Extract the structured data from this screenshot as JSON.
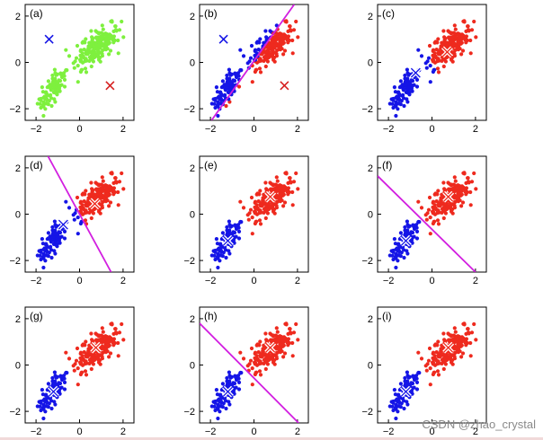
{
  "colors": {
    "cluster1": "#1515e6",
    "cluster2": "#ee2a1e",
    "unassigned": "#7ef03e",
    "boundary": "#d21fe0",
    "centroid_inactive_1": "#1515e6",
    "centroid_inactive_2": "#d62020",
    "centroid_active": "#ffffff"
  },
  "watermark": "CSDN @zhao_crystal",
  "chart_data": {
    "type": "scatter",
    "xlim": [
      -2.5,
      2.5
    ],
    "ylim": [
      -2.5,
      2.5
    ],
    "xticks": [
      -2,
      0,
      2
    ],
    "yticks": [
      -2,
      0,
      2
    ],
    "xtick_labels": [
      "−2",
      "0",
      "2"
    ],
    "ytick_labels": [
      "−2",
      "0",
      "2"
    ],
    "clusters": [
      {
        "center": [
          -1.25,
          -1.2
        ],
        "spread": [
          0.3,
          0.4
        ],
        "count": 95
      },
      {
        "center": [
          0.8,
          0.7
        ],
        "spread": [
          0.45,
          0.4
        ],
        "count": 210
      }
    ],
    "panels": [
      {
        "label": "(a)",
        "coloring": "none",
        "centroids": [
          {
            "x": -1.4,
            "y": 1.0,
            "style": "inactive"
          },
          {
            "x": 1.4,
            "y": -1.0,
            "style": "inactive"
          }
        ],
        "boundary": null
      },
      {
        "label": "(b)",
        "coloring": "boundary",
        "centroids": [
          {
            "x": -1.4,
            "y": 1.0,
            "style": "inactive"
          },
          {
            "x": 1.4,
            "y": -1.0,
            "style": "inactive"
          }
        ],
        "boundary": {
          "x1": -1.95,
          "y1": -2.5,
          "x2": 1.85,
          "y2": 2.5
        }
      },
      {
        "label": "(c)",
        "coloring": "boundary",
        "centroids": [
          {
            "x": -0.75,
            "y": -0.45,
            "style": "active"
          },
          {
            "x": 0.7,
            "y": 0.45,
            "style": "active"
          }
        ],
        "boundary": null
      },
      {
        "label": "(d)",
        "coloring": "boundary",
        "centroids": [
          {
            "x": -0.75,
            "y": -0.45,
            "style": "active"
          },
          {
            "x": 0.7,
            "y": 0.45,
            "style": "active"
          }
        ],
        "boundary": {
          "x1": -1.45,
          "y1": 2.5,
          "x2": 1.45,
          "y2": -2.5
        }
      },
      {
        "label": "(e)",
        "coloring": "cluster",
        "centroids": [
          {
            "x": -1.2,
            "y": -1.15,
            "style": "active"
          },
          {
            "x": 0.75,
            "y": 0.75,
            "style": "active"
          }
        ],
        "boundary": null
      },
      {
        "label": "(f)",
        "coloring": "cluster",
        "centroids": [
          {
            "x": -1.2,
            "y": -1.15,
            "style": "active"
          },
          {
            "x": 0.75,
            "y": 0.75,
            "style": "active"
          }
        ],
        "boundary": {
          "x1": -2.5,
          "y1": 1.65,
          "x2": 2.0,
          "y2": -2.5
        }
      },
      {
        "label": "(g)",
        "coloring": "cluster",
        "centroids": [
          {
            "x": -1.2,
            "y": -1.15,
            "style": "active"
          },
          {
            "x": 0.75,
            "y": 0.75,
            "style": "active"
          }
        ],
        "boundary": null
      },
      {
        "label": "(h)",
        "coloring": "cluster",
        "centroids": [
          {
            "x": -1.2,
            "y": -1.15,
            "style": "active"
          },
          {
            "x": 0.75,
            "y": 0.75,
            "style": "active"
          }
        ],
        "boundary": {
          "x1": -2.5,
          "y1": 1.8,
          "x2": 2.05,
          "y2": -2.5
        }
      },
      {
        "label": "(i)",
        "coloring": "cluster",
        "centroids": [
          {
            "x": -1.2,
            "y": -1.15,
            "style": "active"
          },
          {
            "x": 0.75,
            "y": 0.75,
            "style": "active"
          }
        ],
        "boundary": null
      }
    ]
  }
}
